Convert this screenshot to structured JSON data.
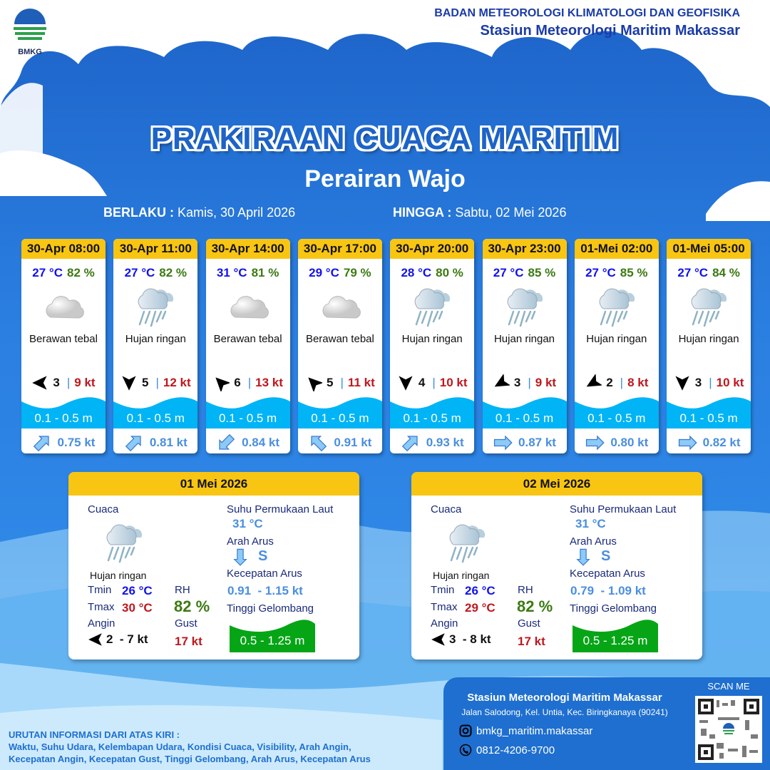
{
  "header": {
    "logo_text": "BMKG",
    "org_line1": "BADAN METEOROLOGI KLIMATOLOGI DAN GEOFISIKA",
    "org_line2": "Stasiun Meteorologi Maritim Makassar"
  },
  "title": "PRAKIRAAN CUACA MARITIM",
  "area": "Perairan Wajo",
  "validity": {
    "from_label": "BERLAKU :",
    "from_value": "Kamis, 30 April 2026",
    "to_label": "HINGGA :",
    "to_value": "Sabtu, 02 Mei 2026"
  },
  "colors": {
    "card_header": "#f8c512",
    "temp": "#1111ee",
    "humidity": "#3c7a12",
    "gust": "#c0161d",
    "wave": "#00b4f5",
    "current": "#4a8ee0",
    "daily_wave": "#06a516"
  },
  "forecasts": [
    {
      "time": "30-Apr 08:00",
      "temp": "27 °C",
      "rh": "82 %",
      "icon": "cloud-icon",
      "weather": "Berawan tebal",
      "wind_dir": "W",
      "wind": "3",
      "gust": "9 kt",
      "wave": "0.1 - 0.5 m",
      "current_dir": "NE",
      "current": "0.75 kt"
    },
    {
      "time": "30-Apr 11:00",
      "temp": "27 °C",
      "rh": "82 %",
      "icon": "rain-icon",
      "weather": "Hujan ringan",
      "wind_dir": "S",
      "wind": "5",
      "gust": "12 kt",
      "wave": "0.1 - 0.5 m",
      "current_dir": "NE",
      "current": "0.81 kt"
    },
    {
      "time": "30-Apr 14:00",
      "temp": "31 °C",
      "rh": "81 %",
      "icon": "cloud-icon",
      "weather": "Berawan tebal",
      "wind_dir": "NW",
      "wind": "6",
      "gust": "13 kt",
      "wave": "0.1 - 0.5 m",
      "current_dir": "SW",
      "current": "0.84 kt"
    },
    {
      "time": "30-Apr 17:00",
      "temp": "29 °C",
      "rh": "79 %",
      "icon": "cloud-icon",
      "weather": "Berawan tebal",
      "wind_dir": "NW",
      "wind": "5",
      "gust": "11 kt",
      "wave": "0.1 - 0.5 m",
      "current_dir": "NW",
      "current": "0.91 kt"
    },
    {
      "time": "30-Apr 20:00",
      "temp": "28 °C",
      "rh": "80 %",
      "icon": "rain-icon",
      "weather": "Hujan ringan",
      "wind_dir": "S",
      "wind": "4",
      "gust": "10 kt",
      "wave": "0.1 - 0.5 m",
      "current_dir": "NE",
      "current": "0.93 kt"
    },
    {
      "time": "30-Apr 23:00",
      "temp": "27 °C",
      "rh": "85 %",
      "icon": "rain-icon",
      "weather": "Hujan ringan",
      "wind_dir": "SW",
      "wind": "3",
      "gust": "9 kt",
      "wave": "0.1 - 0.5 m",
      "current_dir": "E",
      "current": "0.87 kt"
    },
    {
      "time": "01-Mei 02:00",
      "temp": "27 °C",
      "rh": "85 %",
      "icon": "rain-icon",
      "weather": "Hujan ringan",
      "wind_dir": "SW",
      "wind": "2",
      "gust": "8 kt",
      "wave": "0.1 - 0.5 m",
      "current_dir": "E",
      "current": "0.80 kt"
    },
    {
      "time": "01-Mei 05:00",
      "temp": "27 °C",
      "rh": "84 %",
      "icon": "rain-icon",
      "weather": "Hujan ringan",
      "wind_dir": "S",
      "wind": "3",
      "gust": "10 kt",
      "wave": "0.1 - 0.5 m",
      "current_dir": "E",
      "current": "0.82 kt"
    }
  ],
  "daily_labels": {
    "weather": "Cuaca",
    "tmin": "Tmin",
    "tmax": "Tmax",
    "wind": "Angin",
    "rh": "RH",
    "gust": "Gust",
    "sst": "Suhu Permukaan Laut",
    "current_dir": "Arah Arus",
    "current_speed": "Kecepatan Arus",
    "wave": "Tinggi Gelombang"
  },
  "daily": [
    {
      "date": "01 Mei 2026",
      "weather": "Hujan ringan",
      "tmin": "26 °C",
      "tmax": "30 °C",
      "wind_dir": "W",
      "wind": "2  - 7 kt",
      "rh": "82 %",
      "gust": "17 kt",
      "sst": "31 °C",
      "current_dir": "S",
      "current_dir_text": "S",
      "current_speed": "0.91  - 1.15 kt",
      "wave": "0.5 - 1.25 m"
    },
    {
      "date": "02 Mei 2026",
      "weather": "Hujan ringan",
      "tmin": "26 °C",
      "tmax": "29 °C",
      "wind_dir": "W",
      "wind": "3  - 8 kt",
      "rh": "82 %",
      "gust": "17 kt",
      "sst": "31 °C",
      "current_dir": "S",
      "current_dir_text": "S",
      "current_speed": "0.79  - 1.09 kt",
      "wave": "0.5 - 1.25 m"
    }
  ],
  "footer": {
    "station": "Stasiun Meteorologi Maritim Makassar",
    "address": "Jalan Salodong, Kel. Untia, Kec. Biringkanaya (90241)",
    "instagram": "bmkg_maritim.makassar",
    "phone": "0812-4206-9700",
    "scan": "SCAN ME",
    "note_title": "URUTAN INFORMASI DARI ATAS KIRI :",
    "note_line1": "Waktu, Suhu Udara, Kelembapan Udara, Kondisi Cuaca, Visibility, Arah Angin,",
    "note_line2": "Kecepatan Angin, Kecepatan Gust, Tinggi Gelombang, Arah Arus, Kecepatan Arus"
  }
}
